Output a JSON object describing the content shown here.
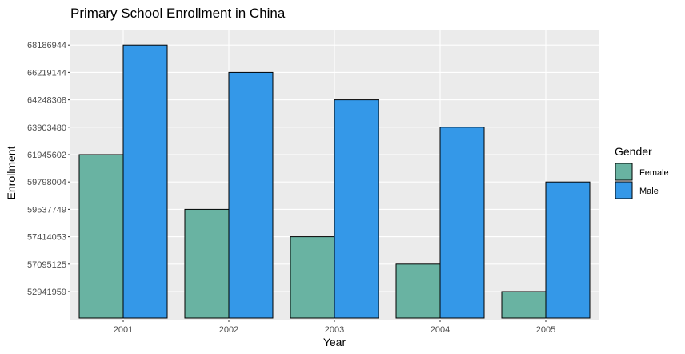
{
  "chart_data": {
    "type": "bar",
    "title": "Primary School Enrollment in China",
    "xlabel": "Year",
    "ylabel": "Enrollment",
    "categories": [
      "2001",
      "2002",
      "2003",
      "2004",
      "2005"
    ],
    "y_ticks": [
      "52941959",
      "57095125",
      "57414053",
      "59537749",
      "59798004",
      "61945602",
      "63903480",
      "64248308",
      "66219144",
      "68186944"
    ],
    "series": [
      {
        "name": "Female",
        "color": "#69b3a2",
        "values": [
          "61945602",
          "59537749",
          "57414053",
          "57095125",
          "52941959"
        ]
      },
      {
        "name": "Male",
        "color": "#3498e8",
        "values": [
          "68186944",
          "66219144",
          "64248308",
          "63903480",
          "59798004"
        ]
      }
    ],
    "legend": {
      "title": "Gender",
      "position": "right"
    },
    "grid": true,
    "note": "y axis is discrete: each enrollment value occupies its own evenly spaced band"
  }
}
